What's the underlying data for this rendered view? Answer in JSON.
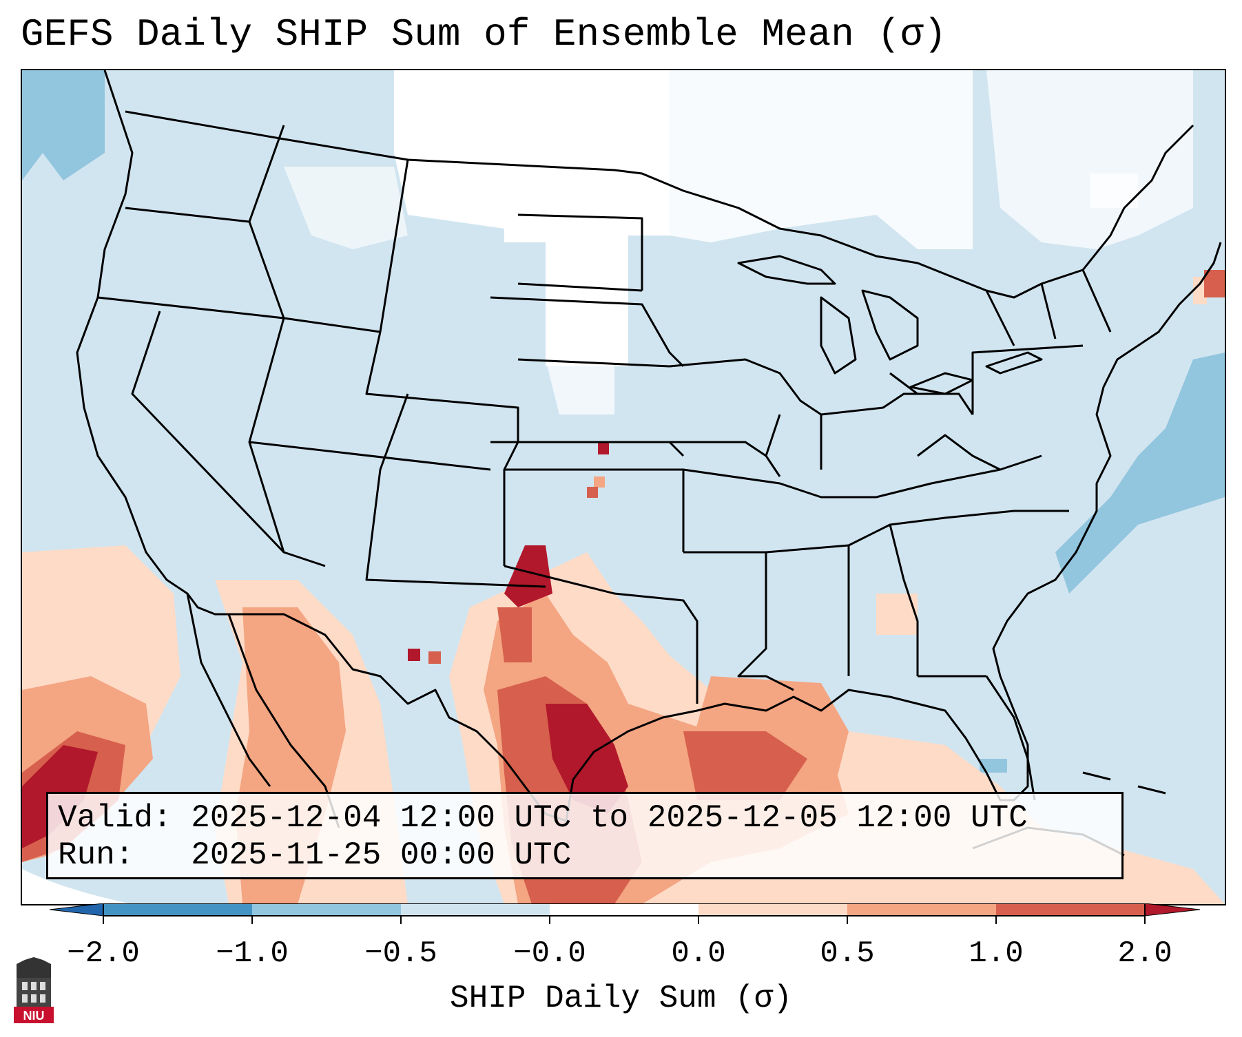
{
  "title": "GEFS Daily SHIP Sum of Ensemble Mean (σ)",
  "info": {
    "valid_label": "Valid:",
    "valid_value": "2025-12-04 12:00 UTC to 2025-12-05 12:00 UTC",
    "run_label": "Run:",
    "run_value": "2025-11-25 00:00 UTC"
  },
  "colorbar": {
    "label": "SHIP Daily Sum (σ)",
    "ticks": [
      "−2.0",
      "−1.0",
      "−0.5",
      "−0.0",
      "0.0",
      "0.5",
      "1.0",
      "2.0"
    ],
    "colors": [
      "#4393c3",
      "#92c5de",
      "#d1e5f0",
      "#ffffff",
      "#fddbc7",
      "#f4a582",
      "#d6604d",
      "#b2182b"
    ],
    "extend_low_color": "#2166ac",
    "extend_high_color": "#b2182b"
  },
  "map": {
    "region": "Contiguous United States",
    "background_color": "#d1e5f0",
    "line_color": "#000000"
  },
  "logo": {
    "text": "NIU",
    "color": "#c8102e"
  }
}
